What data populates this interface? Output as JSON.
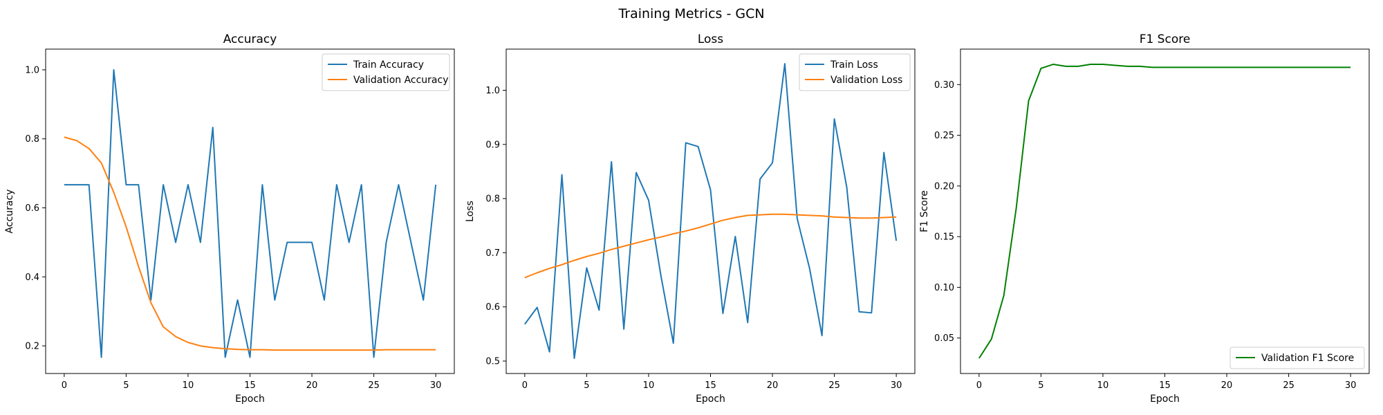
{
  "figure": {
    "suptitle": "Training Metrics - GCN"
  },
  "chart_data": [
    {
      "type": "line",
      "title": "Accuracy",
      "xlabel": "Epoch",
      "ylabel": "Accuracy",
      "xlim": [
        -1.5,
        31.5
      ],
      "ylim": [
        0.12,
        1.06
      ],
      "xticks": [
        0,
        5,
        10,
        15,
        20,
        25,
        30
      ],
      "xtick_labels": [
        "0",
        "5",
        "10",
        "15",
        "20",
        "25",
        "30"
      ],
      "yticks": [
        0.2,
        0.4,
        0.6,
        0.8,
        1.0
      ],
      "ytick_labels": [
        "0.2",
        "0.4",
        "0.6",
        "0.8",
        "1.0"
      ],
      "legend_position": "upper right",
      "series": [
        {
          "name": "Train Accuracy",
          "color": "#1f77b4",
          "x": [
            0,
            1,
            2,
            3,
            4,
            5,
            6,
            7,
            8,
            9,
            10,
            11,
            12,
            13,
            14,
            15,
            16,
            17,
            18,
            19,
            20,
            21,
            22,
            23,
            24,
            25,
            26,
            27,
            28,
            29,
            30
          ],
          "y": [
            0.667,
            0.667,
            0.667,
            0.167,
            1.0,
            0.667,
            0.667,
            0.333,
            0.667,
            0.5,
            0.667,
            0.5,
            0.833,
            0.167,
            0.333,
            0.167,
            0.667,
            0.333,
            0.5,
            0.5,
            0.5,
            0.333,
            0.667,
            0.5,
            0.667,
            0.167,
            0.5,
            0.667,
            0.5,
            0.333,
            0.667
          ]
        },
        {
          "name": "Validation Accuracy",
          "color": "#ff7f0e",
          "x": [
            0,
            1,
            2,
            3,
            4,
            5,
            6,
            7,
            8,
            9,
            10,
            11,
            12,
            13,
            14,
            15,
            16,
            17,
            18,
            19,
            20,
            21,
            22,
            23,
            24,
            25,
            26,
            27,
            28,
            29,
            30
          ],
          "y": [
            0.805,
            0.795,
            0.772,
            0.73,
            0.645,
            0.545,
            0.43,
            0.325,
            0.255,
            0.227,
            0.21,
            0.2,
            0.195,
            0.192,
            0.19,
            0.189,
            0.189,
            0.188,
            0.188,
            0.188,
            0.188,
            0.188,
            0.188,
            0.188,
            0.188,
            0.188,
            0.189,
            0.189,
            0.189,
            0.189,
            0.189
          ]
        }
      ]
    },
    {
      "type": "line",
      "title": "Loss",
      "xlabel": "Epoch",
      "ylabel": "Loss",
      "xlim": [
        -1.5,
        31.5
      ],
      "ylim": [
        0.477,
        1.076
      ],
      "xticks": [
        0,
        5,
        10,
        15,
        20,
        25,
        30
      ],
      "xtick_labels": [
        "0",
        "5",
        "10",
        "15",
        "20",
        "25",
        "30"
      ],
      "yticks": [
        0.5,
        0.6,
        0.7,
        0.8,
        0.9,
        1.0
      ],
      "ytick_labels": [
        "0.5",
        "0.6",
        "0.7",
        "0.8",
        "0.9",
        "1.0"
      ],
      "legend_position": "upper right",
      "series": [
        {
          "name": "Train Loss",
          "color": "#1f77b4",
          "x": [
            0,
            1,
            2,
            3,
            4,
            5,
            6,
            7,
            8,
            9,
            10,
            11,
            12,
            13,
            14,
            15,
            16,
            17,
            18,
            19,
            20,
            21,
            22,
            23,
            24,
            25,
            26,
            27,
            28,
            29,
            30
          ],
          "y": [
            0.568,
            0.599,
            0.517,
            0.844,
            0.505,
            0.672,
            0.594,
            0.868,
            0.559,
            0.848,
            0.797,
            0.657,
            0.533,
            0.903,
            0.896,
            0.816,
            0.588,
            0.73,
            0.571,
            0.836,
            0.866,
            1.049,
            0.763,
            0.671,
            0.547,
            0.947,
            0.821,
            0.591,
            0.589,
            0.885,
            0.722
          ]
        },
        {
          "name": "Validation Loss",
          "color": "#ff7f0e",
          "x": [
            0,
            1,
            2,
            3,
            4,
            5,
            6,
            7,
            8,
            9,
            10,
            11,
            12,
            13,
            14,
            15,
            16,
            17,
            18,
            19,
            20,
            21,
            22,
            23,
            24,
            25,
            26,
            27,
            28,
            29,
            30
          ],
          "y": [
            0.654,
            0.663,
            0.671,
            0.678,
            0.686,
            0.693,
            0.699,
            0.706,
            0.712,
            0.718,
            0.724,
            0.729,
            0.735,
            0.74,
            0.746,
            0.753,
            0.76,
            0.765,
            0.769,
            0.77,
            0.771,
            0.771,
            0.77,
            0.769,
            0.768,
            0.766,
            0.765,
            0.764,
            0.764,
            0.765,
            0.766
          ]
        }
      ]
    },
    {
      "type": "line",
      "title": "F1 Score",
      "xlabel": "Epoch",
      "ylabel": "F1 Score",
      "xlim": [
        -1.5,
        31.5
      ],
      "ylim": [
        0.015,
        0.335
      ],
      "xticks": [
        0,
        5,
        10,
        15,
        20,
        25,
        30
      ],
      "xtick_labels": [
        "0",
        "5",
        "10",
        "15",
        "20",
        "25",
        "30"
      ],
      "yticks": [
        0.05,
        0.1,
        0.15,
        0.2,
        0.25,
        0.3
      ],
      "ytick_labels": [
        "0.05",
        "0.10",
        "0.15",
        "0.20",
        "0.25",
        "0.30"
      ],
      "legend_position": "lower right",
      "series": [
        {
          "name": "Validation F1 Score",
          "color": "#008000",
          "x": [
            0,
            1,
            2,
            3,
            4,
            5,
            6,
            7,
            8,
            9,
            10,
            11,
            12,
            13,
            14,
            15,
            16,
            17,
            18,
            19,
            20,
            21,
            22,
            23,
            24,
            25,
            26,
            27,
            28,
            29,
            30
          ],
          "y": [
            0.03,
            0.049,
            0.092,
            0.178,
            0.284,
            0.316,
            0.32,
            0.318,
            0.318,
            0.32,
            0.32,
            0.319,
            0.318,
            0.318,
            0.317,
            0.317,
            0.317,
            0.317,
            0.317,
            0.317,
            0.317,
            0.317,
            0.317,
            0.317,
            0.317,
            0.317,
            0.317,
            0.317,
            0.317,
            0.317,
            0.317
          ]
        }
      ]
    }
  ]
}
